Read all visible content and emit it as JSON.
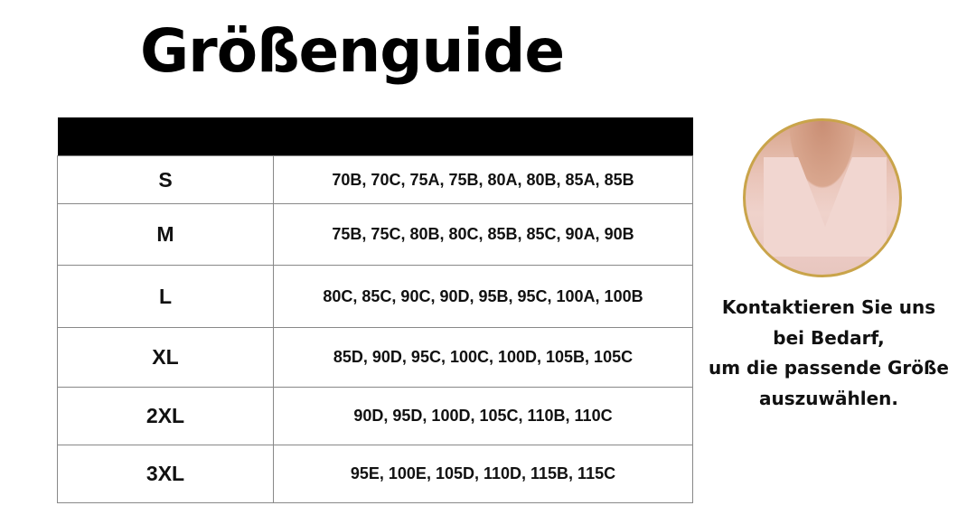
{
  "title": "Größenguide",
  "table": {
    "rows": [
      {
        "size": "S",
        "values": "70B, 70C, 75A, 75B, 80A, 80B, 85A, 85B"
      },
      {
        "size": "M",
        "values": "75B, 75C, 80B, 80C, 85B, 85C, 90A, 90B"
      },
      {
        "size": "L",
        "values": "80C, 85C, 90C, 90D, 95B, 95C, 100A, 100B"
      },
      {
        "size": "XL",
        "values": "85D, 90D, 95C, 100C, 100D, 105B, 105C"
      },
      {
        "size": "2XL",
        "values": "90D, 95D, 100D, 105C, 110B, 110C"
      },
      {
        "size": "3XL",
        "values": "95E, 100E, 105D, 110D, 115B, 115C"
      }
    ]
  },
  "contact": {
    "lines": [
      "Kontaktieren Sie uns",
      "bei Bedarf,",
      "um die passende Größe",
      "auszuwählen."
    ]
  },
  "colors": {
    "header": "#000000",
    "circle_border": "#c9a44a"
  }
}
